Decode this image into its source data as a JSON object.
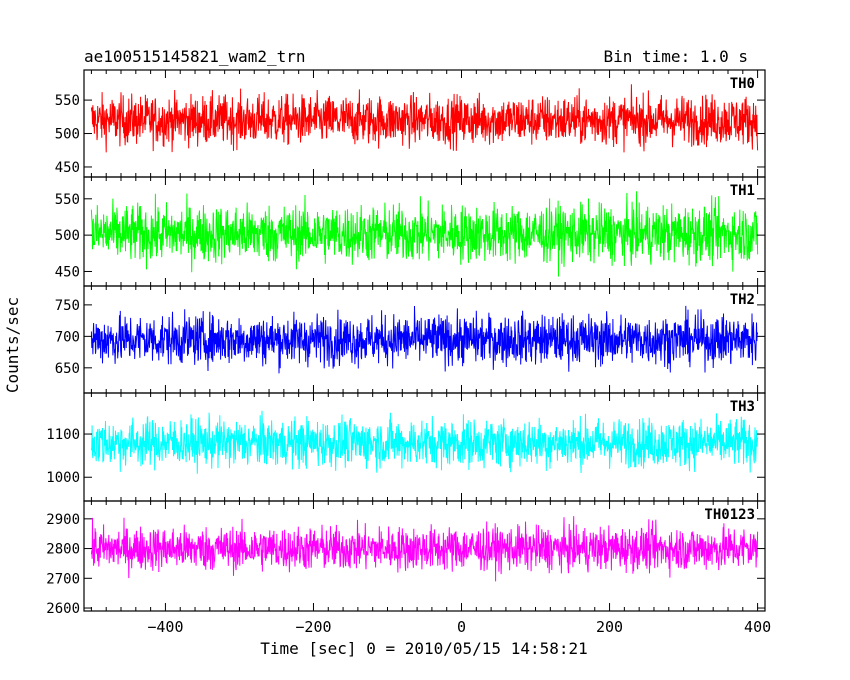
{
  "chart_data": {
    "type": "line",
    "title": "ae100515145821_wam2_trn",
    "bin_time_label": "Bin time: 1.0 s",
    "xlabel": "Time [sec] 0 = 2010/05/15 14:58:21",
    "ylabel": "Counts/sec",
    "xlim": [
      -510,
      410
    ],
    "x_ticks": [
      -400,
      -200,
      0,
      200,
      400
    ],
    "x_tick_labels": [
      "−400",
      "−200",
      "0",
      "200",
      "400"
    ],
    "x_range_data": [
      -500,
      400
    ],
    "grid": false,
    "series": [
      {
        "name": "TH0",
        "color": "#ff0000",
        "ylim": [
          435,
          595
        ],
        "mean": 520,
        "noise": 30,
        "ticks": [
          450,
          500,
          550
        ],
        "tick_labels": [
          "450",
          "500",
          "550"
        ]
      },
      {
        "name": "TH1",
        "color": "#00ff00",
        "ylim": [
          430,
          580
        ],
        "mean": 502,
        "noise": 32,
        "ticks": [
          450,
          500,
          550
        ],
        "tick_labels": [
          "450",
          "500",
          "550"
        ]
      },
      {
        "name": "TH2",
        "color": "#0000ff",
        "ylim": [
          610,
          780
        ],
        "mean": 695,
        "noise": 32,
        "ticks": [
          650,
          700,
          750
        ],
        "tick_labels": [
          "650",
          "700",
          "750"
        ]
      },
      {
        "name": "TH3",
        "color": "#00ffff",
        "ylim": [
          945,
          1195
        ],
        "mean": 1080,
        "noise": 45,
        "ticks": [
          1000,
          1100
        ],
        "tick_labels": [
          "1000",
          "1100"
        ]
      },
      {
        "name": "TH0123",
        "color": "#ff00ff",
        "ylim": [
          2590,
          2960
        ],
        "mean": 2800,
        "noise": 60,
        "ticks": [
          2600,
          2700,
          2800,
          2900
        ],
        "tick_labels": [
          "2600",
          "2700",
          "2800",
          "2900"
        ]
      }
    ]
  }
}
